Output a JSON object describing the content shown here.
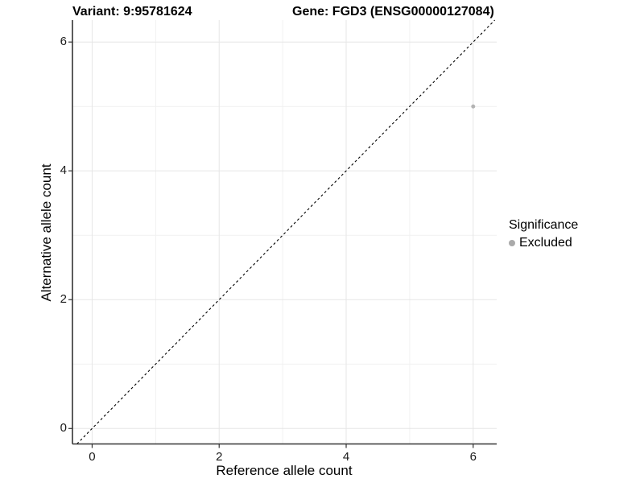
{
  "header": {
    "variant_title": "Variant: 9:95781624",
    "gene_title": "Gene: FGD3 (ENSG00000127084)"
  },
  "axes": {
    "xlabel": "Reference allele count",
    "ylabel": "Alternative allele count"
  },
  "legend": {
    "title": "Significance",
    "entries": [
      {
        "label": "Excluded",
        "color": "#aaaaaa"
      }
    ]
  },
  "colors": {
    "background": "#ffffff",
    "grid_major": "#e6e6e6",
    "grid_minor": "#f1f1f1",
    "axis_line": "#333333",
    "tick_mark": "#333333",
    "point": "#b3b3b3",
    "reference_line": "#000000"
  },
  "chart_data": {
    "type": "scatter",
    "title": "Variant: 9:95781624 | Gene: FGD3 (ENSG00000127084)",
    "xlabel": "Reference allele count",
    "ylabel": "Alternative allele count",
    "xlim": [
      -0.31,
      6.37
    ],
    "ylim": [
      -0.24,
      6.34
    ],
    "x_ticks": [
      0,
      2,
      4,
      6
    ],
    "y_ticks": [
      0,
      2,
      4,
      6
    ],
    "x_minor_gridlines": [
      1,
      3,
      5
    ],
    "y_minor_gridlines": [
      1,
      3,
      5
    ],
    "grid": "on",
    "legend_position": "right",
    "series": [
      {
        "name": "Excluded",
        "color": "#b3b3b3",
        "marker_radius": 2.5,
        "points": [
          {
            "x": 6,
            "y": 5
          }
        ]
      }
    ],
    "reference_line": {
      "type": "abline",
      "slope": 1,
      "intercept": 0,
      "linestyle": "dashed",
      "color": "#000000"
    }
  }
}
